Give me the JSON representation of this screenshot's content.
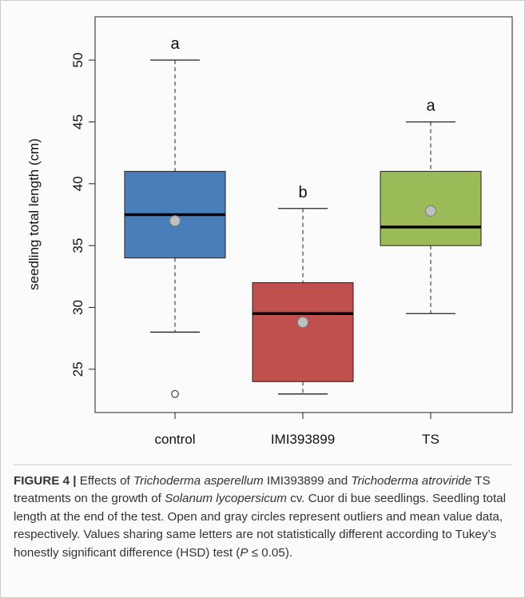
{
  "chart_data": {
    "type": "box",
    "ylabel": "seedling total length (cm)",
    "xlabel": "",
    "ylim": [
      21.5,
      53.5
    ],
    "yticks": [
      25,
      30,
      35,
      40,
      45,
      50
    ],
    "categories": [
      "control",
      "IMI393899",
      "TS"
    ],
    "boxes": [
      {
        "category": "control",
        "whisker_low": 28,
        "q1": 34,
        "median": 37.5,
        "q3": 41,
        "whisker_high": 50,
        "mean": 37.0,
        "outliers": [
          23
        ],
        "letter": "a",
        "color": "#4a7ebb"
      },
      {
        "category": "IMI393899",
        "whisker_low": 23,
        "q1": 24,
        "median": 29.5,
        "q3": 32,
        "whisker_high": 38,
        "mean": 28.8,
        "outliers": [],
        "letter": "b",
        "color": "#c0504d"
      },
      {
        "category": "TS",
        "whisker_low": 29.5,
        "q1": 35,
        "median": 36.5,
        "q3": 41,
        "whisker_high": 45,
        "mean": 37.8,
        "outliers": [],
        "letter": "a",
        "color": "#9bbb59"
      }
    ],
    "grid": false,
    "legend": "none"
  },
  "caption": {
    "label": "FIGURE 4 |",
    "parts": [
      {
        "text": " Effects of ",
        "italic": false
      },
      {
        "text": "Trichoderma asperellum",
        "italic": true
      },
      {
        "text": " IMI393899 and ",
        "italic": false
      },
      {
        "text": "Trichoderma atroviride",
        "italic": true
      },
      {
        "text": " TS treatments on the growth of ",
        "italic": false
      },
      {
        "text": "Solanum lycopersicum",
        "italic": true
      },
      {
        "text": " cv. Cuor di bue seedlings. Seedling total length at the end of the test. Open and gray circles represent outliers and mean value data, respectively. Values sharing same letters are not statistically different according to Tukey’s honestly significant difference (HSD) test (",
        "italic": false
      },
      {
        "text": "P",
        "italic": true
      },
      {
        "text": " ≤ 0.05).",
        "italic": false
      }
    ]
  }
}
